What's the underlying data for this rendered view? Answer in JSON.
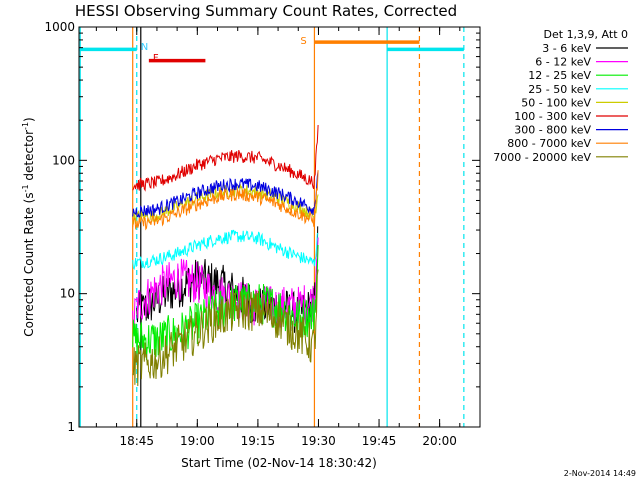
{
  "chart_data": {
    "type": "line",
    "title": "HESSI Observing Summary Count Rates, Corrected",
    "xlabel": "Start Time (02-Nov-14 18:30:42)",
    "ylabel": "Corrected Count Rate (s⁻¹ detector⁻¹)",
    "ylabel_parts": {
      "main": "Corrected Count Rate (s",
      "sup1": "-1",
      "mid": " detector",
      "sup2": "-1",
      "end": ")"
    },
    "y_scale": "log",
    "ylim": [
      1,
      1000
    ],
    "xlim_minutes": [
      "18:30:42",
      "20:10"
    ],
    "y_ticks": [
      "1",
      "10",
      "100",
      "1000"
    ],
    "x_ticks": [
      "18:45",
      "19:00",
      "19:15",
      "19:30",
      "19:45",
      "20:00"
    ],
    "legend_title": "Det 1,3,9, Att 0",
    "footer": "2-Nov-2014 14:49",
    "grid": false,
    "markers": [
      {
        "label": "N",
        "time": "18:45",
        "color": "#33ccff"
      },
      {
        "label": "F",
        "time": "18:48",
        "color": "#e00000"
      },
      {
        "label": "S",
        "time": "19:29",
        "color": "#ff7f00"
      }
    ],
    "state_bars": [
      {
        "name": "night",
        "color": "#00e5ee",
        "segments": [
          [
            "18:30:42",
            "18:45"
          ],
          [
            "19:47",
            "20:06"
          ]
        ],
        "level": 680
      },
      {
        "name": "flare",
        "color": "#e00000",
        "segments": [
          [
            "18:48",
            "19:02"
          ]
        ],
        "level": 560
      },
      {
        "name": "saa",
        "color": "#ff7f00",
        "segments": [
          [
            "19:29",
            "19:55"
          ]
        ],
        "level": 770
      }
    ],
    "vertical_lines": [
      {
        "time": "18:31",
        "color": "#00e5ee",
        "style": "solid"
      },
      {
        "time": "18:44",
        "color": "#ff7f00",
        "style": "solid"
      },
      {
        "time": "18:45",
        "color": "#00e5ee",
        "style": "dashed"
      },
      {
        "time": "18:46",
        "color": "#000000",
        "style": "solid"
      },
      {
        "time": "19:29",
        "color": "#ff7f00",
        "style": "solid"
      },
      {
        "time": "19:47",
        "color": "#00e5ee",
        "style": "solid"
      },
      {
        "time": "19:55",
        "color": "#ff7f00",
        "style": "dashed"
      },
      {
        "time": "20:06",
        "color": "#00e5ee",
        "style": "dashed"
      }
    ],
    "series": [
      {
        "name": "3 - 6 keV",
        "color": "#000000",
        "x": [
          "18:45",
          "18:50",
          "18:55",
          "19:00",
          "19:05",
          "19:10",
          "19:15",
          "19:20",
          "19:25",
          "19:29",
          "19:30"
        ],
        "values": [
          7,
          9,
          11,
          13,
          12,
          10,
          8,
          8,
          7,
          8,
          30
        ]
      },
      {
        "name": "6 - 12 keV",
        "color": "#ff00ff",
        "x": [
          "18:44",
          "18:45",
          "18:50",
          "18:55",
          "19:00",
          "19:05",
          "19:10",
          "19:15",
          "19:20",
          "19:25",
          "19:29",
          "19:30"
        ],
        "values": [
          6,
          8,
          11,
          13,
          12,
          10,
          9,
          8,
          8,
          8,
          9,
          40
        ]
      },
      {
        "name": "12 - 25 keV",
        "color": "#00ee00",
        "x": [
          "18:44",
          "18:50",
          "18:55",
          "19:00",
          "19:05",
          "19:10",
          "19:15",
          "19:20",
          "19:25",
          "19:29",
          "19:30"
        ],
        "values": [
          4.5,
          4.5,
          5,
          6,
          7.5,
          8.5,
          8.5,
          8,
          6.5,
          7,
          20
        ]
      },
      {
        "name": "25 - 50 keV",
        "color": "#00ffff",
        "x": [
          "18:44",
          "18:50",
          "18:55",
          "19:00",
          "19:05",
          "19:10",
          "19:15",
          "19:20",
          "19:25",
          "19:29",
          "19:30"
        ],
        "values": [
          17,
          18,
          20,
          23,
          26,
          27,
          26,
          22,
          19,
          17,
          30
        ]
      },
      {
        "name": "50 - 100 keV",
        "color": "#cccc00",
        "x": [
          "18:44",
          "18:50",
          "18:55",
          "19:00",
          "19:05",
          "19:10",
          "19:15",
          "19:20",
          "19:25",
          "19:29",
          "19:30"
        ],
        "values": [
          37,
          39,
          45,
          52,
          57,
          60,
          58,
          52,
          45,
          38,
          60
        ]
      },
      {
        "name": "100 - 300 keV",
        "color": "#e00000",
        "x": [
          "18:44",
          "18:50",
          "18:55",
          "19:00",
          "19:05",
          "19:10",
          "19:15",
          "19:20",
          "19:25",
          "19:29",
          "19:30"
        ],
        "values": [
          65,
          68,
          78,
          92,
          103,
          108,
          104,
          92,
          78,
          68,
          190
        ]
      },
      {
        "name": "300 - 800 keV",
        "color": "#0000e0",
        "x": [
          "18:44",
          "18:50",
          "18:55",
          "19:00",
          "19:05",
          "19:10",
          "19:15",
          "19:20",
          "19:25",
          "19:29",
          "19:30"
        ],
        "values": [
          41,
          43,
          49,
          57,
          64,
          67,
          64,
          57,
          49,
          43,
          95
        ]
      },
      {
        "name": "800 - 7000 keV",
        "color": "#ff7f00",
        "x": [
          "18:44",
          "18:50",
          "18:55",
          "19:00",
          "19:05",
          "19:10",
          "19:15",
          "19:20",
          "19:25",
          "19:29",
          "19:30"
        ],
        "values": [
          33,
          35,
          40,
          47,
          53,
          56,
          53,
          47,
          40,
          35,
          85
        ]
      },
      {
        "name": "7000 - 20000 keV",
        "color": "#808000",
        "x": [
          "18:44",
          "18:50",
          "18:55",
          "19:00",
          "19:05",
          "19:10",
          "19:15",
          "19:20",
          "19:25",
          "19:29",
          "19:30"
        ],
        "values": [
          2.8,
          3.2,
          4,
          5.2,
          6.5,
          7.5,
          7.5,
          6.5,
          5,
          4,
          15
        ]
      }
    ]
  }
}
